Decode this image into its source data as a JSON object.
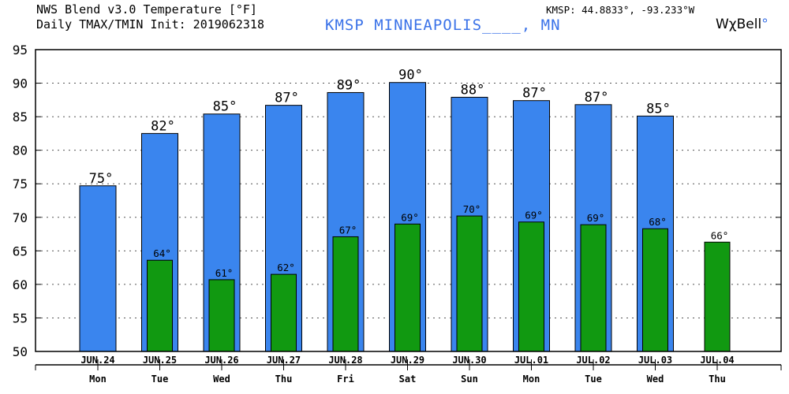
{
  "header": {
    "title_line1": "NWS Blend v3.0 Temperature [°F]",
    "title_line2": "Daily TMAX/TMIN Init: 2019062318",
    "station": "KMSP MINNEAPOLIS____, MN",
    "coordinates": "KMSP: 44.8833°, -93.233°W",
    "brand_text": "WχBell",
    "brand_dot": "°"
  },
  "chart_data": {
    "type": "bar",
    "title": "NWS Blend v3.0 Temperature [°F]",
    "subtitle": "Daily TMAX/TMIN Init: 2019062318",
    "categories": [
      "JUN.24",
      "JUN.25",
      "JUN.26",
      "JUN.27",
      "JUN.28",
      "JUN.29",
      "JUN.30",
      "JUL.01",
      "JUL.02",
      "JUL.03",
      "JUL.04"
    ],
    "weekdays": [
      "Mon",
      "Tue",
      "Wed",
      "Thu",
      "Fri",
      "Sat",
      "Sun",
      "Mon",
      "Tue",
      "Wed",
      "Thu"
    ],
    "series": [
      {
        "name": "TMAX",
        "color": "#3a85ee",
        "values": [
          74.7,
          82.5,
          85.4,
          86.7,
          88.6,
          90.1,
          87.9,
          87.4,
          86.8,
          85.1,
          null
        ],
        "labels": [
          "75°",
          "82°",
          "85°",
          "87°",
          "89°",
          "90°",
          "88°",
          "87°",
          "87°",
          "85°",
          ""
        ]
      },
      {
        "name": "TMIN",
        "color": "#119911",
        "values": [
          null,
          63.6,
          60.7,
          61.5,
          67.1,
          69.0,
          70.2,
          69.3,
          68.9,
          68.3,
          66.3
        ],
        "labels": [
          "",
          "64°",
          "61°",
          "62°",
          "67°",
          "69°",
          "70°",
          "69°",
          "69°",
          "68°",
          "66°"
        ]
      }
    ],
    "yticks": [
      50,
      55,
      60,
      65,
      70,
      75,
      80,
      85,
      90,
      95
    ],
    "ylim": [
      50,
      95
    ],
    "grid": true
  }
}
